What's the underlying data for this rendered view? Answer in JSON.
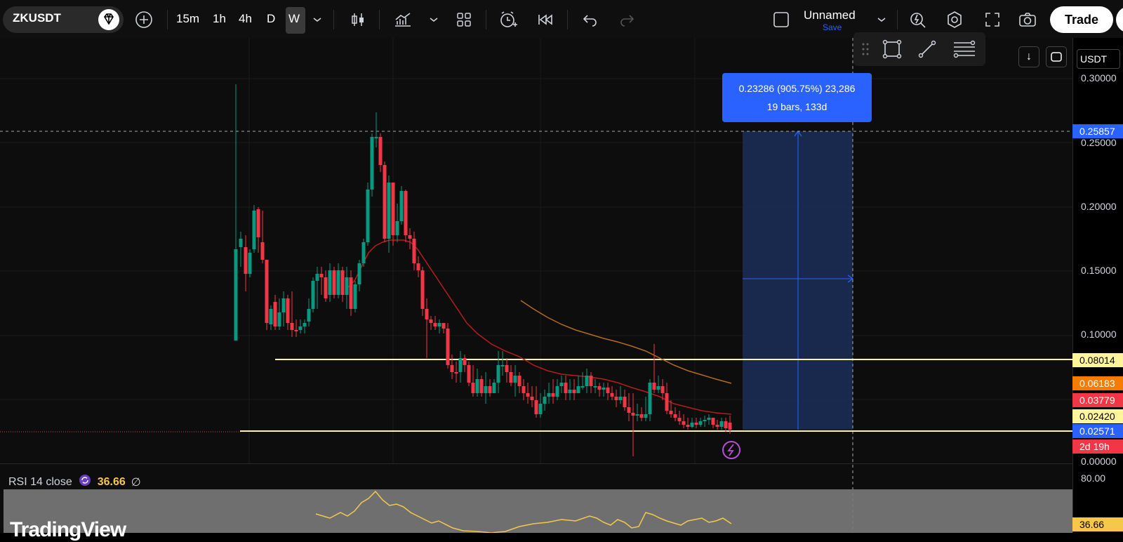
{
  "toolbar": {
    "symbol": "ZKUSDT",
    "intervals": [
      "15m",
      "1h",
      "4h",
      "D",
      "W"
    ],
    "active_interval": "W",
    "layout_name": "Unnamed",
    "save_label": "Save",
    "trade_label": "Trade"
  },
  "chart": {
    "currency": "USDT",
    "price_ticks": [
      "0.30000",
      "0.25000",
      "0.20000",
      "0.15000",
      "0.10000",
      "0.00000"
    ],
    "price_labels": [
      {
        "value": "0.25857",
        "bg": "#2962ff",
        "color": "#ffffff"
      },
      {
        "value": "0.08014",
        "bg": "#fff59d",
        "color": "#000000"
      },
      {
        "value": "0.06183",
        "bg": "#f57c00",
        "color": "#ffffff"
      },
      {
        "value": "0.03779",
        "bg": "#f23645",
        "color": "#ffffff"
      },
      {
        "value": "0.02420",
        "bg": "#fff59d",
        "color": "#000000"
      },
      {
        "value": "0.02571",
        "bg": "#2962ff",
        "color": "#ffffff"
      },
      {
        "value": "2d 19h",
        "bg": "#f23645",
        "color": "#ffffff"
      }
    ],
    "measure": {
      "line1": "0.23286 (905.75%) 23,286",
      "line2": "19 bars, 133d"
    },
    "colors": {
      "up": "#089981",
      "down": "#f23645",
      "support": "#fff59d",
      "ma_fast": "#b71c1c",
      "ma_slow": "#b36b1f"
    }
  },
  "rsi": {
    "title": "RSI 14 close",
    "value": "36.66",
    "symbol": "∅",
    "tick": "80.00",
    "label": "36.66"
  },
  "watermark": "TradingView"
}
